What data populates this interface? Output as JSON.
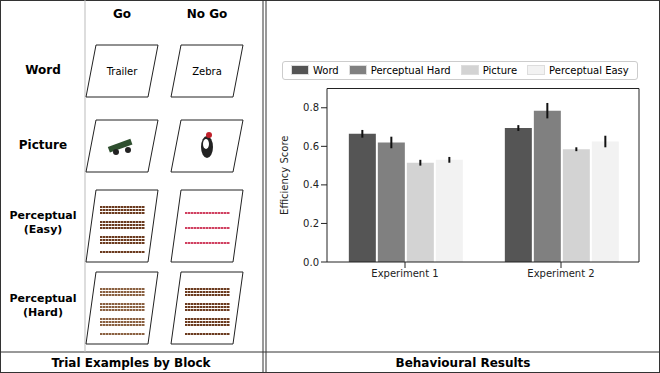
{
  "panels": {
    "left": {
      "title": "Trial Examples by Block",
      "columns": [
        "Go",
        "No Go"
      ],
      "rows": [
        "Word",
        "Picture",
        "Perceptual (Easy)",
        "Perceptual (Hard)"
      ],
      "word_examples": [
        "Trailer",
        "Zebra"
      ]
    },
    "right": {
      "title": "Behavioural Results"
    }
  },
  "chart_data": {
    "type": "bar",
    "y_label": "Efficiency Score",
    "categories": [
      "Experiment 1",
      "Experiment 2"
    ],
    "series": [
      {
        "name": "Word",
        "color": "#555555",
        "values": [
          0.665,
          0.695
        ],
        "errors": [
          0.02,
          0.015
        ]
      },
      {
        "name": "Perceptual Hard",
        "color": "#808080",
        "values": [
          0.62,
          0.785
        ],
        "errors": [
          0.03,
          0.04
        ]
      },
      {
        "name": "Picture",
        "color": "#d3d3d3",
        "values": [
          0.515,
          0.585
        ],
        "errors": [
          0.015,
          0.01
        ]
      },
      {
        "name": "Perceptual Easy",
        "color": "#f2f2f2",
        "values": [
          0.53,
          0.625
        ],
        "errors": [
          0.015,
          0.03
        ]
      }
    ],
    "ylim": [
      0,
      0.9
    ],
    "yticks": [
      {
        "value": 0,
        "label": "0.0"
      },
      0.2,
      0.4,
      0.6,
      0.8
    ],
    "legend": "top"
  }
}
